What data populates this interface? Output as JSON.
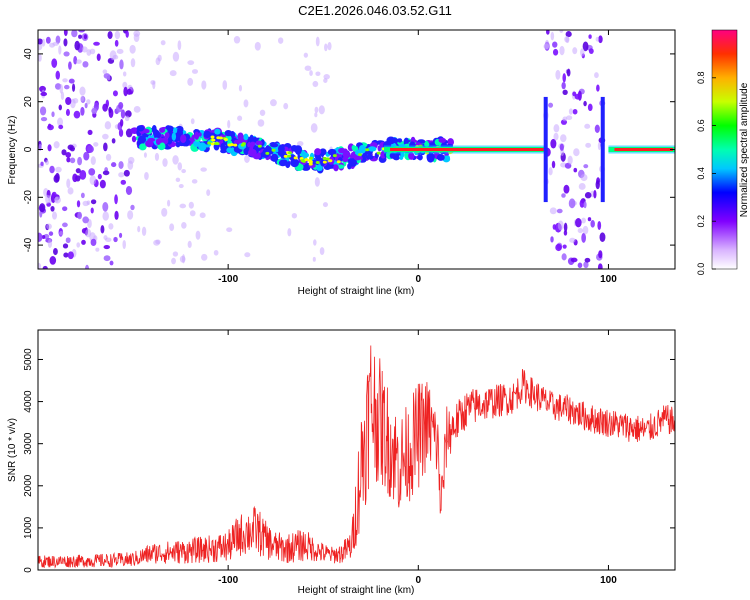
{
  "figure_title": "C2E1.2026.046.03.52.G11",
  "colors": {
    "trace": "#ee2222",
    "axis": "#000000",
    "background": "#ffffff",
    "scatter": "#6a00f0"
  },
  "chart_data": [
    {
      "type": "heatmap",
      "title": "C2E1.2026.046.03.52.G11",
      "xlabel": "Height of straight line (km)",
      "ylabel": "Frequency (Hz)",
      "xlim": [
        -200,
        135
      ],
      "ylim": [
        -50,
        50
      ],
      "xticks": [
        -100,
        0,
        100
      ],
      "xtick_labels": [
        "-100",
        "0",
        "100"
      ],
      "yticks": [
        -40,
        -20,
        0,
        20,
        40
      ],
      "ytick_labels": [
        "-40",
        "-20",
        "0",
        "20",
        "40"
      ],
      "colorbar": {
        "label": "Normalized spectral amplitude",
        "range": [
          0,
          1
        ],
        "ticks": [
          0.0,
          0.2,
          0.4,
          0.6,
          0.8
        ],
        "tick_labels": [
          "0.0",
          "0.2",
          "0.4",
          "0.6",
          "0.8"
        ]
      },
      "ridge": {
        "description_points_x": [
          -150,
          -130,
          -110,
          -90,
          -70,
          -55,
          -45,
          -35,
          -25,
          -15,
          0,
          20,
          40,
          60,
          67
        ],
        "frequency_hz": [
          5,
          5,
          4,
          2,
          -2,
          -5,
          -4,
          -3,
          -1,
          0,
          0,
          0,
          0,
          0,
          0
        ]
      },
      "gaps": [
        {
          "x_from": 67,
          "x_to": 97,
          "note": "noisy band"
        }
      ]
    },
    {
      "type": "line",
      "xlabel": "Height of straight line (km)",
      "ylabel": "SNR (10 * v/v)",
      "xlim": [
        -200,
        135
      ],
      "ylim": [
        0,
        5700
      ],
      "xticks": [
        -100,
        0,
        100
      ],
      "xtick_labels": [
        "-100",
        "0",
        "100"
      ],
      "yticks": [
        0,
        1000,
        2000,
        3000,
        4000,
        5000
      ],
      "ytick_labels": [
        "0",
        "1000",
        "2000",
        "3000",
        "4000",
        "5000"
      ],
      "series": [
        {
          "name": "SNR",
          "x": [
            -200,
            -180,
            -160,
            -150,
            -140,
            -130,
            -120,
            -110,
            -100,
            -95,
            -90,
            -85,
            -80,
            -75,
            -70,
            -65,
            -60,
            -55,
            -50,
            -45,
            -40,
            -35,
            -30,
            -25,
            -20,
            -15,
            -10,
            -5,
            0,
            5,
            10,
            12,
            15,
            20,
            25,
            30,
            40,
            50,
            55,
            60,
            70,
            80,
            90,
            100,
            110,
            120,
            130,
            135
          ],
          "values": [
            200,
            210,
            230,
            250,
            400,
            420,
            450,
            500,
            550,
            800,
            900,
            950,
            700,
            550,
            500,
            550,
            600,
            500,
            400,
            350,
            400,
            600,
            2500,
            4000,
            3500,
            3000,
            2500,
            2800,
            3200,
            3500,
            3000,
            1500,
            3200,
            3500,
            3800,
            3900,
            4000,
            4100,
            4400,
            4200,
            3900,
            3800,
            3600,
            3500,
            3400,
            3300,
            3600,
            3500
          ],
          "spread": [
            150,
            150,
            170,
            180,
            250,
            280,
            300,
            330,
            380,
            500,
            550,
            600,
            450,
            380,
            350,
            380,
            400,
            300,
            250,
            200,
            250,
            400,
            1500,
            1800,
            1500,
            1300,
            1200,
            1200,
            1300,
            1100,
            900,
            800,
            700,
            500,
            450,
            450,
            400,
            400,
            400,
            380,
            350,
            350,
            350,
            350,
            350,
            350,
            350,
            350
          ]
        }
      ]
    }
  ]
}
